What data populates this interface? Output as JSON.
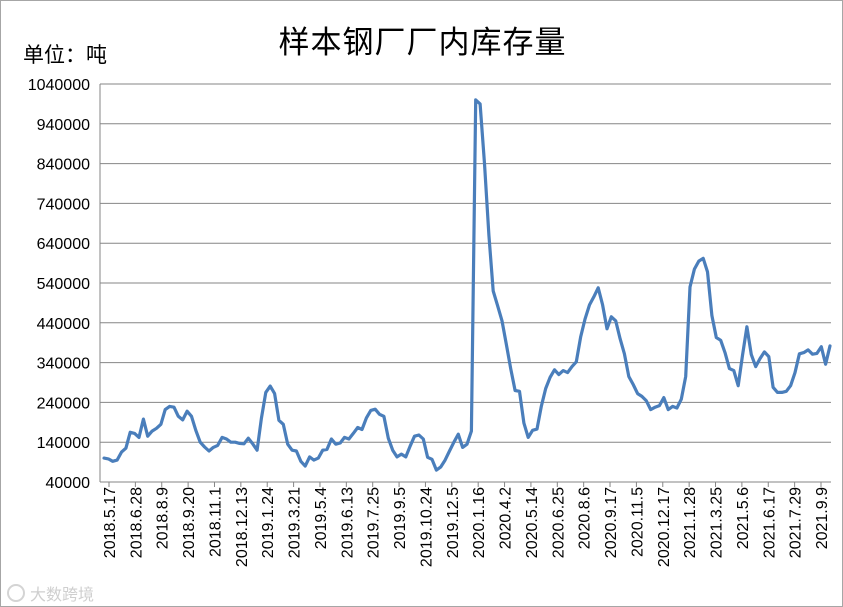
{
  "chart_data": {
    "type": "line",
    "title": "样本钢厂厂内库存量",
    "unit_label": "单位：吨",
    "ylim": [
      40000,
      1040000
    ],
    "y_ticks": [
      40000,
      140000,
      240000,
      340000,
      440000,
      540000,
      640000,
      740000,
      840000,
      940000,
      1040000
    ],
    "x_tick_labels": [
      "2018.5.17",
      "2018.6.28",
      "2018.8.9",
      "2018.9.20",
      "2018.11.1",
      "2018.12.13",
      "2019.1.24",
      "2019.3.21",
      "2019.5.4",
      "2019.6.13",
      "2019.7.25",
      "2019.9.5",
      "2019.10.24",
      "2019.12.5",
      "2020.1.16",
      "2020.4.2",
      "2020.5.14",
      "2020.6.25",
      "2020.8.6",
      "2020.9.17",
      "2020.11.5",
      "2020.12.17",
      "2021.1.28",
      "2021.3.25",
      "2021.5.6",
      "2021.6.17",
      "2021.7.29",
      "2021.9.9"
    ],
    "grid": true,
    "series": [
      {
        "color": "#4a7ebb",
        "values": [
          100000,
          98000,
          92000,
          95000,
          115000,
          125000,
          165000,
          162000,
          152000,
          198000,
          155000,
          168000,
          175000,
          185000,
          222000,
          230000,
          228000,
          205000,
          196000,
          218000,
          205000,
          170000,
          140000,
          128000,
          118000,
          127000,
          132000,
          152000,
          148000,
          140000,
          140000,
          137000,
          136000,
          150000,
          136000,
          120000,
          200000,
          265000,
          281000,
          262000,
          195000,
          185000,
          135000,
          120000,
          118000,
          92000,
          80000,
          103000,
          95000,
          100000,
          120000,
          122000,
          148000,
          135000,
          138000,
          152000,
          148000,
          162000,
          177000,
          172000,
          201000,
          220000,
          223000,
          210000,
          205000,
          150000,
          120000,
          103000,
          110000,
          103000,
          130000,
          155000,
          158000,
          148000,
          102000,
          97000,
          70000,
          78000,
          95000,
          118000,
          140000,
          160000,
          127000,
          135000,
          168000,
          1000000,
          990000,
          840000,
          660000,
          520000,
          483000,
          445000,
          385000,
          325000,
          270000,
          268000,
          188000,
          152000,
          170000,
          173000,
          230000,
          275000,
          303000,
          322000,
          310000,
          320000,
          315000,
          330000,
          342000,
          405000,
          450000,
          485000,
          505000,
          528000,
          485000,
          425000,
          455000,
          445000,
          400000,
          362000,
          305000,
          285000,
          262000,
          255000,
          244000,
          222000,
          228000,
          232000,
          252000,
          222000,
          230000,
          226000,
          248000,
          305000,
          530000,
          575000,
          595000,
          602000,
          568000,
          458000,
          403000,
          396000,
          365000,
          325000,
          320000,
          282000,
          358000,
          430000,
          360000,
          330000,
          350000,
          367000,
          355000,
          278000,
          265000,
          265000,
          268000,
          282000,
          315000,
          362000,
          365000,
          372000,
          361000,
          363000,
          380000,
          336000,
          382000
        ]
      }
    ]
  },
  "watermark": {
    "text": "大数跨境"
  }
}
